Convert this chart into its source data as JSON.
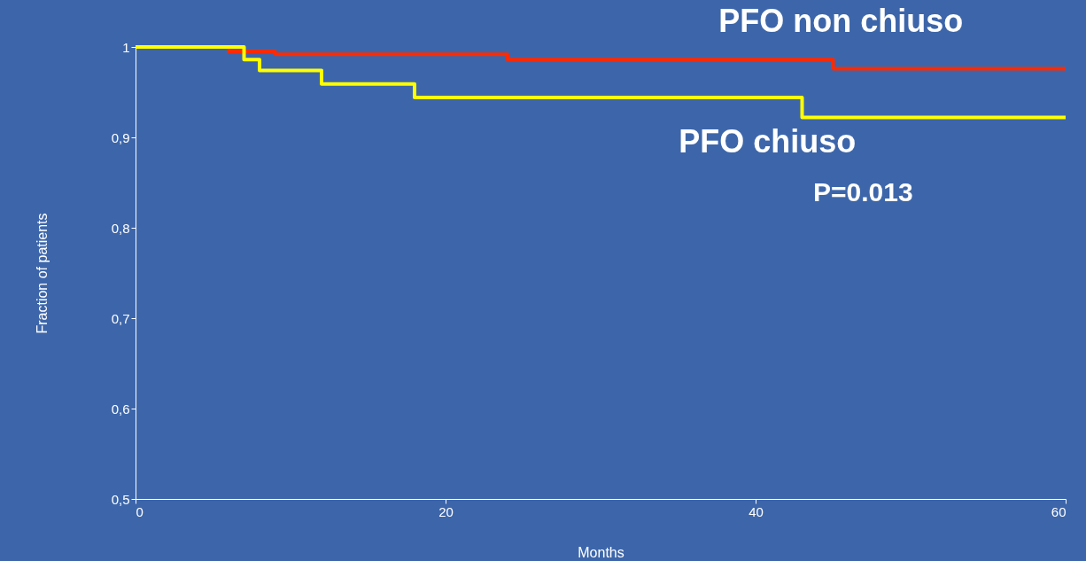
{
  "chart_data": {
    "type": "step",
    "xlabel": "Months",
    "ylabel": "Fraction of patients",
    "series": [
      {
        "name": "PFO non chiuso",
        "color": "#ff2a00",
        "x": [
          0,
          6,
          9,
          24,
          45,
          60
        ],
        "values": [
          1,
          0.995,
          0.992,
          0.986,
          0.976,
          0.976
        ]
      },
      {
        "name": "PFO chiuso",
        "color": "#ffff00",
        "x": [
          0,
          7,
          8,
          12,
          18,
          43,
          60
        ],
        "values": [
          1,
          0.986,
          0.974,
          0.959,
          0.944,
          0.922,
          0.922
        ]
      }
    ],
    "annotations": [
      "P=0.013"
    ],
    "xlim": [
      0,
      60
    ],
    "xticks": [
      0,
      20,
      40,
      60
    ],
    "ylim": [
      0.5,
      1
    ],
    "yticks": [
      {
        "value": 0.5,
        "label": "0,5"
      },
      {
        "value": 0.6,
        "label": "0,6"
      },
      {
        "value": 0.7,
        "label": "0,7"
      },
      {
        "value": 0.8,
        "label": "0,8"
      },
      {
        "value": 0.9,
        "label": "0,9"
      },
      {
        "value": 1,
        "label": "1"
      }
    ],
    "grid": false
  }
}
